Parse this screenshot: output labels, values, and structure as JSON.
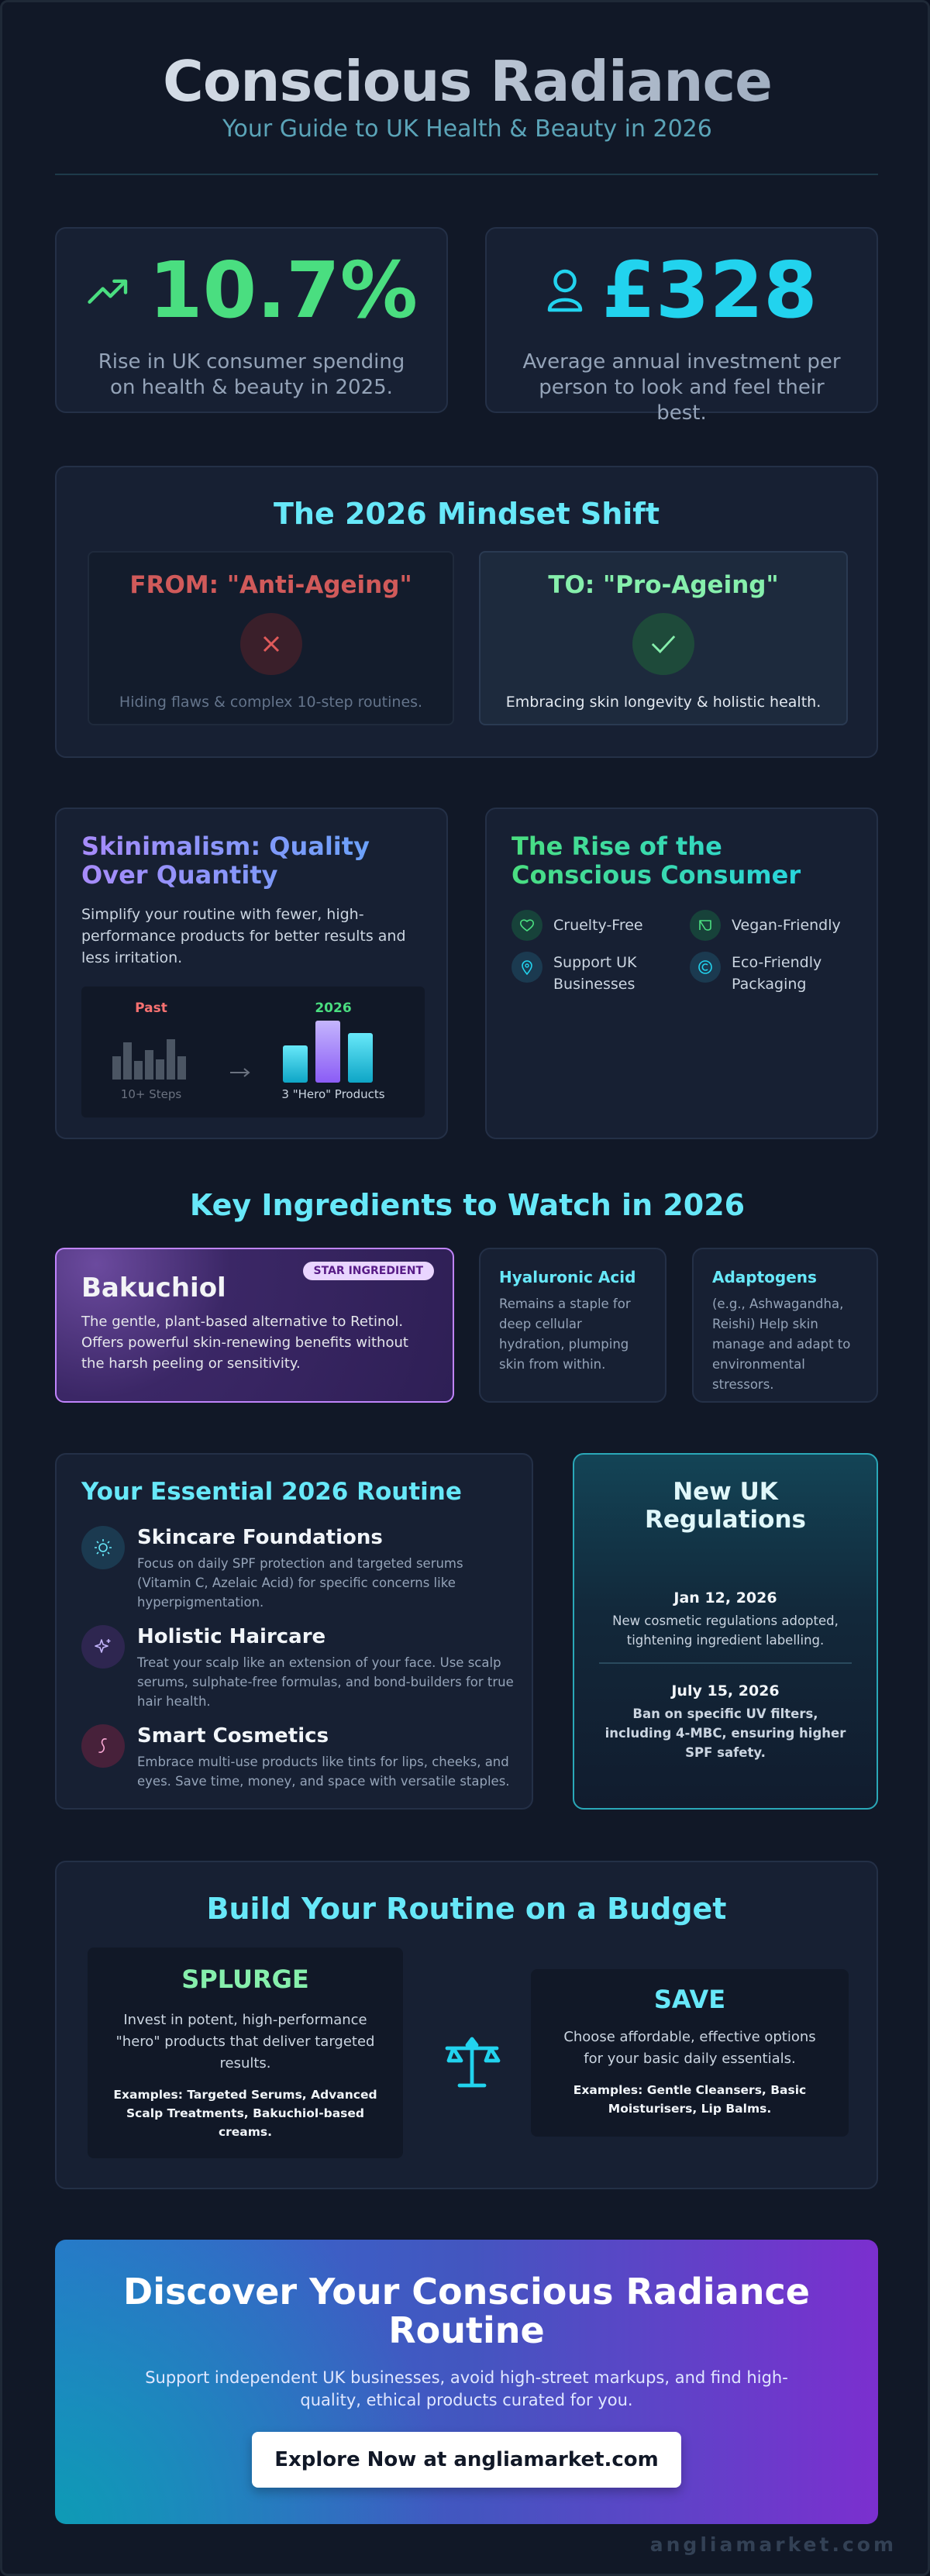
{
  "header": {
    "title": "Conscious Radiance",
    "subtitle": "Your Guide to UK Health & Beauty in 2026"
  },
  "stats": [
    {
      "value": "10.7%",
      "description": "Rise in UK consumer spending on health & beauty in 2025."
    },
    {
      "value": "£328",
      "description": "Average annual investment per person to look and feel their best."
    }
  ],
  "mindset": {
    "title": "The 2026 Mindset Shift",
    "from": {
      "label": "FROM: \"Anti-Ageing\"",
      "caption": "Hiding flaws & complex 10-step routines."
    },
    "to": {
      "label": "TO: \"Pro-Ageing\"",
      "caption": "Embracing skin longevity & holistic health."
    }
  },
  "skinimalism": {
    "title": "Skinimalism: Quality Over Quantity",
    "body": "Simplify your routine with fewer, high-performance products for better results and less irritation.",
    "chart": {
      "past_label": "Past",
      "past_caption": "10+ Steps",
      "new_label": "2026",
      "new_caption": "3 \"Hero\" Products"
    }
  },
  "conscious_consumer": {
    "title": "The Rise of the Conscious Consumer",
    "items": [
      "Cruelty-Free",
      "Vegan-Friendly",
      "Support UK Businesses",
      "Eco-Friendly Packaging"
    ]
  },
  "ingredients": {
    "title": "Key Ingredients to Watch in 2026",
    "featured": {
      "badge": "STAR INGREDIENT",
      "name": "Bakuchiol",
      "description": "The gentle, plant-based alternative to Retinol. Offers powerful skin-renewing benefits without the harsh peeling or sensitivity."
    },
    "others": [
      {
        "name": "Hyaluronic Acid",
        "description": "Remains a staple for deep cellular hydration, plumping skin from within."
      },
      {
        "name": "Adaptogens",
        "description": "(e.g., Ashwagandha, Reishi) Help skin manage and adapt to environmental stressors."
      }
    ]
  },
  "routine": {
    "title": "Your Essential 2026 Routine",
    "steps": [
      {
        "title": "Skincare Foundations",
        "description": "Focus on daily SPF protection and targeted serums (Vitamin C, Azelaic Acid) for specific concerns like hyperpigmentation."
      },
      {
        "title": "Holistic Haircare",
        "description": "Treat your scalp like an extension of your face. Use scalp serums, sulphate-free formulas, and bond-builders for true hair health."
      },
      {
        "title": "Smart Cosmetics",
        "description": "Embrace multi-use products like tints for lips, cheeks, and eyes. Save time, money, and space with versatile staples."
      }
    ]
  },
  "regulations": {
    "title": "New UK Regulations",
    "events": [
      {
        "date": "Jan 12, 2026",
        "description": "New cosmetic regulations adopted, tightening ingredient labelling."
      },
      {
        "date": "July 15, 2026",
        "description": "Ban on specific UV filters, including 4-MBC, ensuring higher SPF safety."
      }
    ]
  },
  "budget": {
    "title": "Build Your Routine on a Budget",
    "splurge": {
      "title": "SPLURGE",
      "description": "Invest in potent, high-performance \"hero\" products that deliver targeted results.",
      "examples": "Examples: Targeted Serums, Advanced Scalp Treatments, Bakuchiol-based creams."
    },
    "save": {
      "title": "SAVE",
      "description": "Choose affordable, effective options for your basic daily essentials.",
      "examples": "Examples: Gentle Cleansers, Basic Moisturisers, Lip Balms."
    }
  },
  "cta": {
    "title": "Discover Your Conscious Radiance Routine",
    "text": "Support independent UK businesses, avoid high-street markups, and find high-quality, ethical products curated for you.",
    "button": "Explore Now at angliamarket.com"
  },
  "footer": {
    "brand": "angliamarket.com"
  }
}
